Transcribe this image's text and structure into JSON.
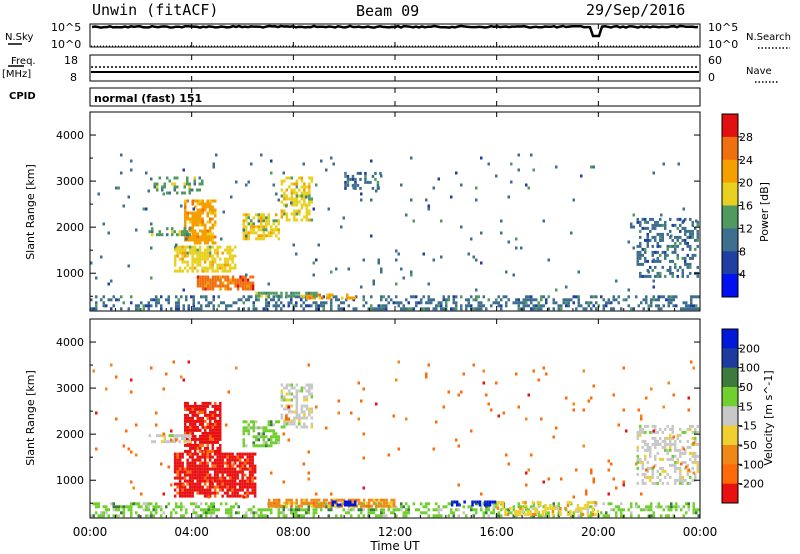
{
  "header": {
    "station": "Unwin (fitACF)",
    "beam": "Beam 09",
    "date": "29/Sep/2016"
  },
  "nsky_panel": {
    "left_label": "N.Sky",
    "right_label": "N.Search",
    "left_top": "10^5",
    "left_bottom": "10^0",
    "right_top": "10^5",
    "right_bottom": "10^0"
  },
  "freq_panel": {
    "left_label_1": "Freq.",
    "left_label_2": "[MHz]",
    "left_label_3": "CPID",
    "right_label": "Nave",
    "left_top": "18",
    "left_bottom": "8",
    "right_top": "60",
    "right_bottom": "0"
  },
  "cpid_panel": {
    "text": "normal (fast) 151"
  },
  "x_axis": {
    "label": "Time UT",
    "ticks": [
      "00:00",
      "04:00",
      "08:00",
      "12:00",
      "16:00",
      "20:00",
      "00:00"
    ]
  },
  "colors": {
    "power": [
      "#0010f0",
      "#1f3fa3",
      "#3f6f8f",
      "#4f9a60",
      "#e8d020",
      "#f5a000",
      "#f07010",
      "#e01010"
    ],
    "velocity": [
      "#0018d8",
      "#1f3a9f",
      "#3d7a3d",
      "#70d030",
      "#c8c8c8",
      "#f0d030",
      "#f08818",
      "#ff6a08",
      "#e81010"
    ]
  },
  "chart_data": [
    {
      "type": "heatmap",
      "ylabel": "Slant Range [km]",
      "xlabel": "",
      "x_range_hours": [
        0,
        24
      ],
      "ylim": [
        180,
        4500
      ],
      "y_ticks": [
        "1000",
        "2000",
        "3000",
        "4000"
      ],
      "colorbar": {
        "label": "Power [dB]",
        "ticks": [
          "4",
          "8",
          "12",
          "16",
          "20",
          "24",
          "28"
        ],
        "range": [
          0,
          30
        ]
      },
      "clusters": [
        {
          "t0": 0,
          "t1": 24,
          "r0": 200,
          "r1": 520,
          "v": 9,
          "density": 0.4,
          "level": 2
        },
        {
          "t0": 4.2,
          "t1": 6.5,
          "r0": 650,
          "r1": 950,
          "v": 26,
          "density": 0.8,
          "level": 6
        },
        {
          "t0": 3.3,
          "t1": 5.8,
          "r0": 1000,
          "r1": 1600,
          "v": 16,
          "density": 0.7,
          "level": 4
        },
        {
          "t0": 3.7,
          "t1": 5.0,
          "r0": 1600,
          "r1": 2600,
          "v": 22,
          "density": 0.7,
          "level": 5
        },
        {
          "t0": 6.0,
          "t1": 7.5,
          "r0": 1700,
          "r1": 2300,
          "v": 16,
          "density": 0.6,
          "level": 4
        },
        {
          "t0": 2.3,
          "t1": 4.0,
          "r0": 1800,
          "r1": 2000,
          "v": 10,
          "density": 0.5,
          "level": 3
        },
        {
          "t0": 2.5,
          "t1": 4.5,
          "r0": 2700,
          "r1": 3100,
          "v": 12,
          "density": 0.4,
          "level": 3
        },
        {
          "t0": 7.5,
          "t1": 8.8,
          "r0": 2100,
          "r1": 3100,
          "v": 16,
          "density": 0.5,
          "level": 4
        },
        {
          "t0": 10.0,
          "t1": 11.5,
          "r0": 2800,
          "r1": 3200,
          "v": 10,
          "density": 0.4,
          "level": 2
        },
        {
          "t0": 8.5,
          "t1": 10.5,
          "r0": 400,
          "r1": 560,
          "v": 20,
          "density": 0.6,
          "level": 5
        },
        {
          "t0": 6.5,
          "t1": 9.0,
          "r0": 450,
          "r1": 600,
          "v": 12,
          "density": 0.6,
          "level": 3
        },
        {
          "t0": 21.5,
          "t1": 24,
          "r0": 900,
          "r1": 2200,
          "v": 8,
          "density": 0.4,
          "level": 2
        },
        {
          "t0": 0,
          "t1": 24,
          "r0": 600,
          "r1": 3600,
          "v": 8,
          "density": 0.015,
          "level": 2
        }
      ]
    },
    {
      "type": "heatmap",
      "ylabel": "Slant Range [km]",
      "xlabel": "Time UT",
      "x_range_hours": [
        0,
        24
      ],
      "ylim": [
        180,
        4500
      ],
      "y_ticks": [
        "1000",
        "2000",
        "3000",
        "4000"
      ],
      "colorbar": {
        "label": "Velocity [m s^-1]",
        "ticks": [
          "200",
          "100",
          "50",
          "15",
          "-15",
          "-50",
          "-100",
          "-200"
        ],
        "range": [
          -250,
          250
        ]
      },
      "clusters": [
        {
          "t0": 0,
          "t1": 24,
          "r0": 200,
          "r1": 520,
          "v": 10,
          "density": 0.4,
          "level": 3
        },
        {
          "t0": 3.3,
          "t1": 6.5,
          "r0": 650,
          "r1": 1600,
          "v": -220,
          "density": 0.85,
          "level": 8
        },
        {
          "t0": 3.7,
          "t1": 5.2,
          "r0": 1600,
          "r1": 2700,
          "v": -220,
          "density": 0.8,
          "level": 8
        },
        {
          "t0": 6.0,
          "t1": 7.5,
          "r0": 1700,
          "r1": 2300,
          "v": 40,
          "density": 0.6,
          "level": 3
        },
        {
          "t0": 7.5,
          "t1": 8.8,
          "r0": 2100,
          "r1": 3100,
          "v": 5,
          "density": 0.5,
          "level": 4
        },
        {
          "t0": 2.3,
          "t1": 4.0,
          "r0": 1800,
          "r1": 2000,
          "v": 10,
          "density": 0.5,
          "level": 4
        },
        {
          "t0": 7.0,
          "t1": 12,
          "r0": 400,
          "r1": 600,
          "v": -80,
          "density": 0.7,
          "level": 6
        },
        {
          "t0": 9.5,
          "t1": 10.5,
          "r0": 420,
          "r1": 560,
          "v": 220,
          "density": 0.7,
          "level": 0
        },
        {
          "t0": 14.2,
          "t1": 14.8,
          "r0": 420,
          "r1": 560,
          "v": 220,
          "density": 0.7,
          "level": 0
        },
        {
          "t0": 15.0,
          "t1": 16.0,
          "r0": 420,
          "r1": 560,
          "v": 220,
          "density": 0.8,
          "level": 0
        },
        {
          "t0": 16.0,
          "t1": 20.0,
          "r0": 250,
          "r1": 550,
          "v": -40,
          "density": 0.4,
          "level": 5
        },
        {
          "t0": 21.5,
          "t1": 24,
          "r0": 900,
          "r1": 2200,
          "v": 5,
          "density": 0.4,
          "level": 4
        },
        {
          "t0": 0,
          "t1": 24,
          "r0": 600,
          "r1": 3600,
          "v": -100,
          "density": 0.015,
          "level": 7
        }
      ]
    }
  ]
}
